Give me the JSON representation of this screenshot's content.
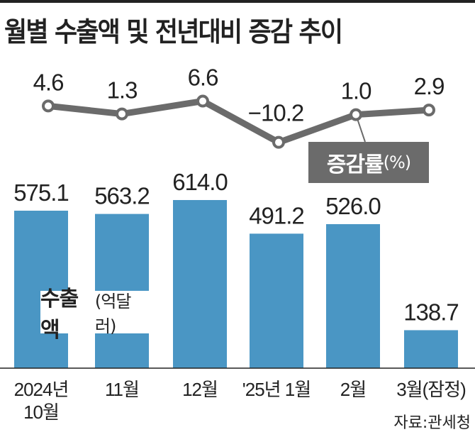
{
  "title": "월별 수출액 및 전년대비 증감 추이",
  "source": "자료:관세청",
  "colors": {
    "bar": "#4a96c4",
    "line": "#6b6b6b"
  },
  "chart_data": {
    "type": "bar+line",
    "categories": [
      "2024년 10월",
      "11월",
      "12월",
      "'25년 1월",
      "2월",
      "3월(잠정)"
    ],
    "category_lines": [
      [
        "2024년",
        "10월"
      ],
      [
        "11월"
      ],
      [
        "12월"
      ],
      [
        "'25년 1월"
      ],
      [
        "2월"
      ],
      [
        "3월(잠정)"
      ]
    ],
    "series": [
      {
        "name": "수출액",
        "unit": "(억달러)",
        "type": "bar",
        "values": [
          575.1,
          563.2,
          614.0,
          491.2,
          526.0,
          138.7
        ],
        "labels": [
          "575.1",
          "563.2",
          "614.0",
          "491.2",
          "526.0",
          "138.7"
        ]
      },
      {
        "name": "증감률",
        "unit": "(%)",
        "type": "line",
        "values": [
          4.6,
          1.3,
          6.6,
          -10.2,
          1.0,
          2.9
        ],
        "labels": [
          "4.6",
          "1.3",
          "6.6",
          "−10.2",
          "1.0",
          "2.9"
        ]
      }
    ]
  }
}
